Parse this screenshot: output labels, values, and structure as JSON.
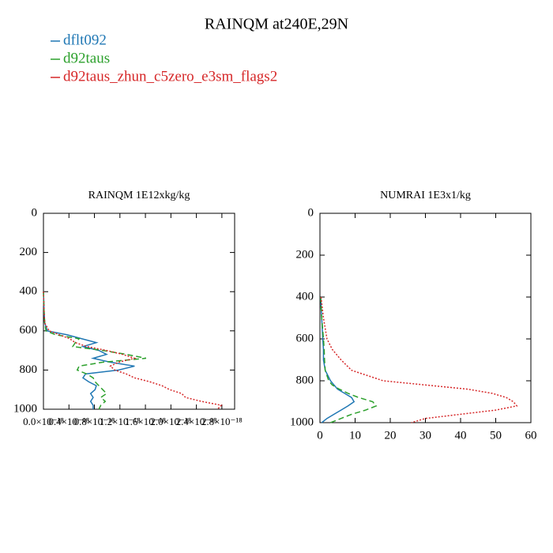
{
  "title": "RAINQM at240E,29N",
  "chart_data": [
    {
      "type": "line",
      "title": "RAINQM  1E12xkg/kg",
      "y": [
        400,
        500,
        560,
        600,
        620,
        640,
        660,
        680,
        700,
        720,
        740,
        760,
        780,
        800,
        820,
        840,
        860,
        880,
        900,
        920,
        940,
        960,
        980,
        1000
      ],
      "ylim": [
        0,
        1000
      ],
      "yticks": [
        0,
        200,
        400,
        600,
        800,
        1000
      ],
      "invert_y": true,
      "xlim": [
        0,
        3e-18
      ],
      "xticks": [
        {
          "value": 0,
          "label": "0.0×10⁻¹⁸"
        },
        {
          "value": 4e-19,
          "label": "0.4×10⁻¹⁸"
        },
        {
          "value": 8e-19,
          "label": "0.8×10⁻¹⁸"
        },
        {
          "value": 1.2e-18,
          "label": "1.2×10⁻¹⁸"
        },
        {
          "value": 1.6e-18,
          "label": "1.6×10⁻¹⁸"
        },
        {
          "value": 2e-18,
          "label": "2.0×10⁻¹⁸"
        },
        {
          "value": 2.4e-18,
          "label": "2.4×10⁻¹⁸"
        },
        {
          "value": 2.8e-18,
          "label": "2.8×10⁻¹⁸"
        }
      ],
      "series": [
        {
          "name": "dflt092",
          "color": "#1f77b4",
          "dash": "solid",
          "values": [
            0,
            1e-20,
            2e-20,
            6e-20,
            3.7e-19,
            6e-19,
            8.3e-19,
            6.2e-19,
            8.7e-19,
            9.9e-19,
            7.8e-19,
            1.05e-18,
            1.43e-18,
            1.18e-18,
            6.6e-19,
            6.2e-19,
            7.1e-19,
            8.3e-19,
            8.1e-19,
            7.4e-19,
            7.8e-19,
            7.4e-19,
            7.8e-19,
            7.8e-19
          ]
        },
        {
          "name": "d92taus",
          "color": "#2ca02c",
          "dash": "dashed",
          "values": [
            0,
            1e-20,
            2e-20,
            4e-20,
            1.9e-19,
            5.6e-19,
            5e-19,
            4.6e-19,
            9.3e-19,
            1.3e-18,
            1.61e-18,
            9.3e-19,
            5.6e-19,
            5.3e-19,
            6.8e-19,
            7.8e-19,
            8.1e-19,
            8.7e-19,
            9.3e-19,
            9.9e-19,
            9e-19,
            9.7e-19,
            9e-19,
            8.7e-19
          ]
        },
        {
          "name": "d92taus_zhun_c5zero_e3sm_flags2",
          "color": "#d62728",
          "dash": "dotted",
          "values": [
            0,
            1e-20,
            2e-20,
            9e-20,
            2.5e-19,
            4.1e-19,
            5e-19,
            6.8e-19,
            9.9e-19,
            1.24e-18,
            1.43e-18,
            1.18e-18,
            1.05e-18,
            1.12e-18,
            1.3e-18,
            1.43e-18,
            1.67e-18,
            1.86e-18,
            1.98e-18,
            2.17e-18,
            2.23e-18,
            2.48e-18,
            2.79e-18,
            2.73e-18
          ]
        }
      ]
    },
    {
      "type": "line",
      "title": "NUMRAI  1E3x1/kg",
      "y": [
        400,
        500,
        600,
        650,
        700,
        750,
        800,
        820,
        840,
        860,
        880,
        900,
        920,
        940,
        960,
        980,
        1000
      ],
      "ylim": [
        0,
        1000
      ],
      "yticks": [
        0,
        200,
        400,
        600,
        800,
        1000
      ],
      "invert_y": true,
      "xlim": [
        0,
        60
      ],
      "xticks": [
        0,
        10,
        20,
        30,
        40,
        50,
        60
      ],
      "series": [
        {
          "name": "dflt092",
          "color": "#1f77b4",
          "dash": "solid",
          "values": [
            0.2,
            0.5,
            0.8,
            1,
            1,
            1.5,
            3,
            4,
            5,
            7,
            9,
            9.7,
            8,
            6,
            4,
            2,
            0.5
          ]
        },
        {
          "name": "d92taus",
          "color": "#2ca02c",
          "dash": "dashed",
          "values": [
            0.2,
            0.5,
            1,
            1.2,
            1.3,
            1.5,
            2.5,
            3.5,
            5.5,
            8,
            11,
            15,
            16,
            13,
            9,
            6,
            3
          ]
        },
        {
          "name": "d92taus_zhun_c5zero_e3sm_flags2",
          "color": "#d62728",
          "dash": "dotted",
          "values": [
            0.3,
            1,
            2,
            3.5,
            6,
            9,
            18,
            30,
            42,
            49,
            53,
            55,
            56,
            50,
            40,
            30,
            26
          ]
        }
      ]
    }
  ]
}
